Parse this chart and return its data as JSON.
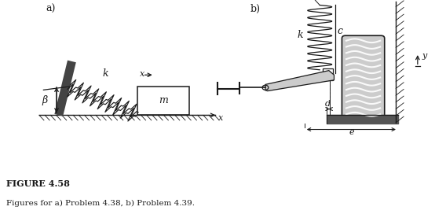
{
  "title": "FIGURE 4.58",
  "subtitle": "Figures for a) Problem 4.38, b) Problem 4.39.",
  "label_a": "a)",
  "label_b": "b)",
  "bg_color": "#ffffff",
  "text_color": "#1a1a1a",
  "line_color": "#1a1a1a",
  "gray_dark": "#555555",
  "gray_mid": "#888888",
  "gray_light": "#cccccc",
  "spring_lw": 0.9,
  "fig_width": 5.54,
  "fig_height": 2.72,
  "dpi": 100
}
